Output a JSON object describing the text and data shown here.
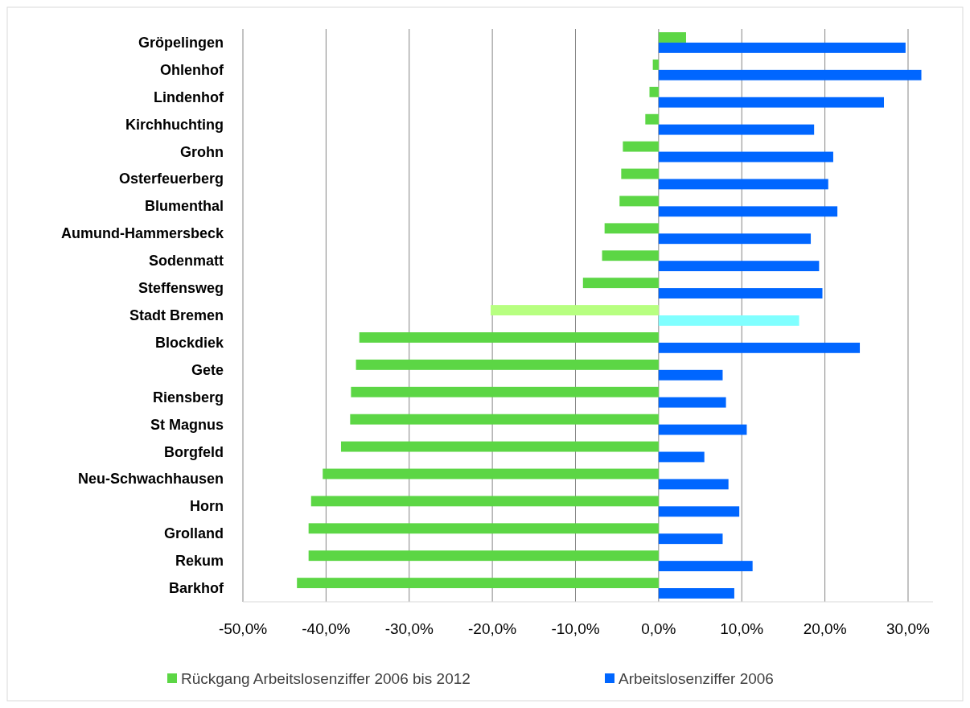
{
  "chart_data": {
    "type": "bar",
    "orientation": "horizontal",
    "categories": [
      "Gröpelingen",
      "Ohlenhof",
      "Lindenhof",
      "Kirchhuchting",
      "Grohn",
      "Osterfeuerberg",
      "Blumenthal",
      "Aumund-Hammersbeck",
      "Sodenmatt",
      "Steffensweg",
      "Stadt Bremen",
      "Blockdiek",
      "Gete",
      "Riensberg",
      "St Magnus",
      "Borgfeld",
      "Neu-Schwachhausen",
      "Horn",
      "Grolland",
      "Rekum",
      "Barkhof"
    ],
    "series": [
      {
        "name": "Rückgang Arbeitslosenziffer 2006 bis 2012",
        "color": "#5cd645",
        "colors": [
          "#5cd645",
          "#5cd645",
          "#5cd645",
          "#5cd645",
          "#5cd645",
          "#5cd645",
          "#5cd645",
          "#5cd645",
          "#5cd645",
          "#5cd645",
          "#b7ff80",
          "#5cd645",
          "#5cd645",
          "#5cd645",
          "#5cd645",
          "#5cd645",
          "#5cd645",
          "#5cd645",
          "#5cd645",
          "#5cd645",
          "#5cd645"
        ],
        "values": [
          3.3,
          -0.7,
          -1.1,
          -1.6,
          -4.3,
          -4.5,
          -4.7,
          -6.5,
          -6.8,
          -9.1,
          -20.2,
          -36.0,
          -36.4,
          -37.0,
          -37.1,
          -38.2,
          -40.4,
          -41.8,
          -42.1,
          -42.1,
          -43.5
        ]
      },
      {
        "name": "Arbeitslosenziffer 2006",
        "color": "#0066ff",
        "colors": [
          "#0066ff",
          "#0066ff",
          "#0066ff",
          "#0066ff",
          "#0066ff",
          "#0066ff",
          "#0066ff",
          "#0066ff",
          "#0066ff",
          "#0066ff",
          "#80ffff",
          "#0066ff",
          "#0066ff",
          "#0066ff",
          "#0066ff",
          "#0066ff",
          "#0066ff",
          "#0066ff",
          "#0066ff",
          "#0066ff",
          "#0066ff"
        ],
        "values": [
          29.7,
          31.6,
          27.1,
          18.7,
          21.0,
          20.4,
          21.5,
          18.3,
          19.3,
          19.7,
          16.9,
          24.2,
          7.7,
          8.1,
          10.6,
          5.5,
          8.4,
          9.7,
          7.7,
          11.3,
          9.1
        ]
      }
    ],
    "xlim": [
      -50,
      33
    ],
    "xticks": [
      {
        "value": -50,
        "label": "-50,0%"
      },
      {
        "value": -40,
        "label": "-40,0%"
      },
      {
        "value": -30,
        "label": "-30,0%"
      },
      {
        "value": -20,
        "label": "-20,0%"
      },
      {
        "value": -10,
        "label": "-10,0%"
      },
      {
        "value": 0,
        "label": "0,0%"
      },
      {
        "value": 10,
        "label": "10,0%"
      },
      {
        "value": 20,
        "label": "20,0%"
      },
      {
        "value": 30,
        "label": "30,0%"
      }
    ],
    "grid": "x",
    "legend": "bottom"
  }
}
